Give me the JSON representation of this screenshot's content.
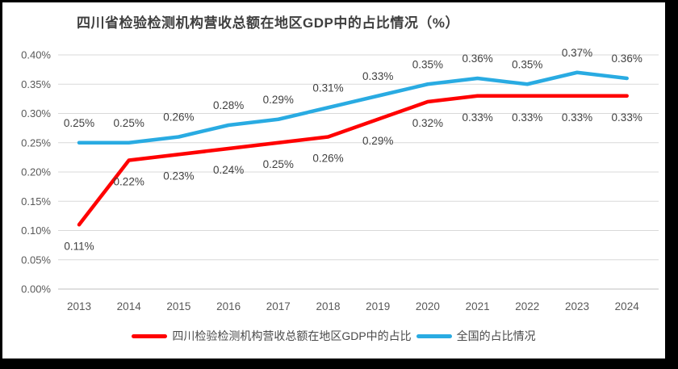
{
  "frame": {
    "border_color": "#000000",
    "background_color": "#FFFFFF"
  },
  "chart_data": {
    "type": "line",
    "title": "四川省检验检测机构营收总额在地区GDP中的占比情况（%）",
    "xlabel": "",
    "ylabel": "",
    "categories": [
      "2013",
      "2014",
      "2015",
      "2016",
      "2017",
      "2018",
      "2019",
      "2020",
      "2021",
      "2022",
      "2023",
      "2024"
    ],
    "series": [
      {
        "name": "四川检验检测机构营收总额在地区GDP中的占比",
        "color": "#FF0000",
        "values": [
          0.11,
          0.22,
          0.23,
          0.24,
          0.25,
          0.26,
          0.29,
          0.32,
          0.33,
          0.33,
          0.33,
          0.33
        ],
        "labels": [
          "0.11%",
          "0.22%",
          "0.23%",
          "0.24%",
          "0.25%",
          "0.26%",
          "0.29%",
          "0.32%",
          "0.33%",
          "0.33%",
          "0.33%",
          "0.33%"
        ],
        "label_position": "below"
      },
      {
        "name": "全国的占比情况",
        "color": "#29ABE2",
        "values": [
          0.25,
          0.25,
          0.26,
          0.28,
          0.29,
          0.31,
          0.33,
          0.35,
          0.36,
          0.35,
          0.37,
          0.36
        ],
        "labels": [
          "0.25%",
          "0.25%",
          "0.26%",
          "0.28%",
          "0.29%",
          "0.31%",
          "0.33%",
          "0.35%",
          "0.36%",
          "0.35%",
          "0.37%",
          "0.36%"
        ],
        "label_position": "above"
      }
    ],
    "ylim": [
      0,
      0.4
    ],
    "y_ticks": {
      "values": [
        0,
        0.05,
        0.1,
        0.15,
        0.2,
        0.25,
        0.3,
        0.35,
        0.4
      ],
      "labels": [
        "0.00%",
        "0.05%",
        "0.10%",
        "0.15%",
        "0.20%",
        "0.25%",
        "0.30%",
        "0.35%",
        "0.40%"
      ]
    },
    "grid": "horizontal",
    "grid_color": "#D9D9D9",
    "baseline_color": "#BFBFBF",
    "axis_text_color": "#595959",
    "data_label_color": "#404040",
    "legend_position": "bottom"
  }
}
